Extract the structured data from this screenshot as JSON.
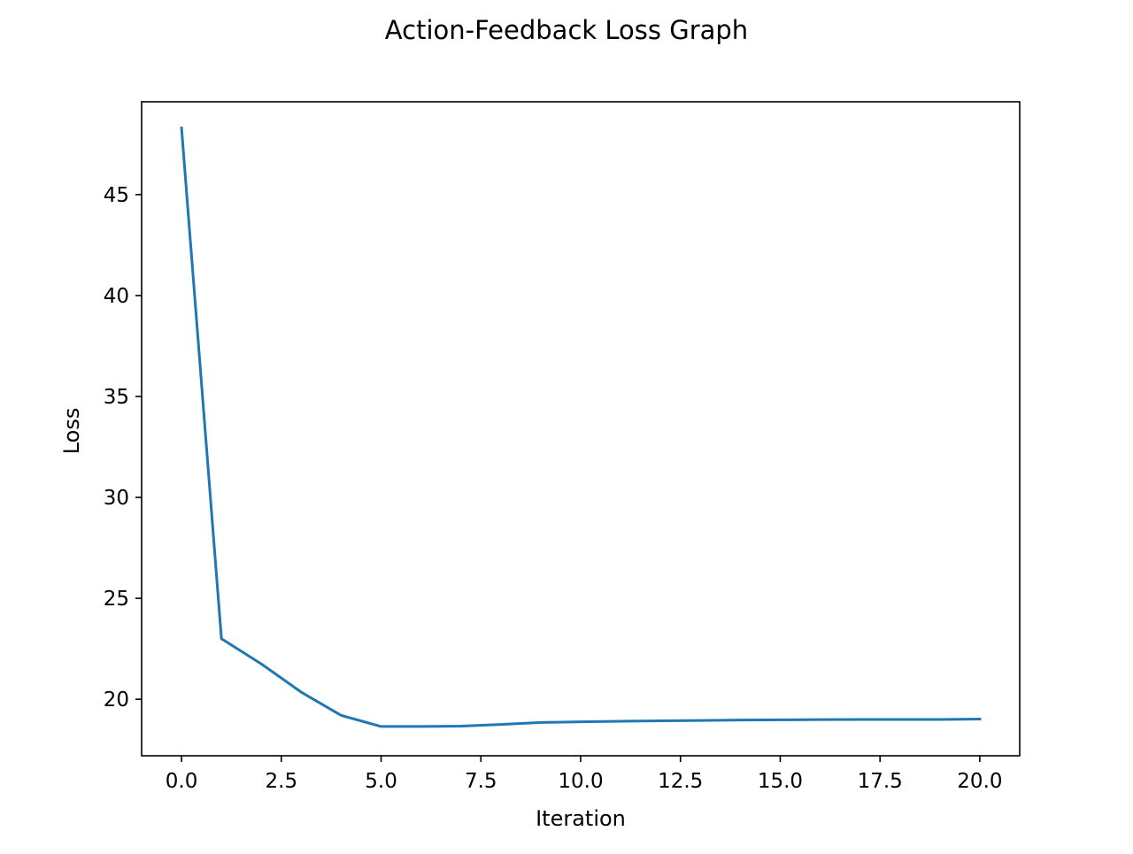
{
  "chart_data": {
    "type": "line",
    "title": "Action-Feedback Loss Graph",
    "xlabel": "Iteration",
    "ylabel": "Loss",
    "xlim": [
      -1.0,
      21.0
    ],
    "ylim": [
      17.2,
      49.6
    ],
    "xticks": [
      0.0,
      2.5,
      5.0,
      7.5,
      10.0,
      12.5,
      15.0,
      17.5,
      20.0
    ],
    "xtick_labels": [
      "0.0",
      "2.5",
      "5.0",
      "7.5",
      "10.0",
      "12.5",
      "15.0",
      "17.5",
      "20.0"
    ],
    "yticks": [
      20,
      25,
      30,
      35,
      40,
      45
    ],
    "ytick_labels": [
      "20",
      "25",
      "30",
      "35",
      "40",
      "45"
    ],
    "grid": false,
    "series": [
      {
        "color": "#1f77b4",
        "x": [
          0,
          1,
          2,
          3,
          4,
          5,
          6,
          7,
          8,
          9,
          10,
          11,
          12,
          13,
          14,
          15,
          16,
          17,
          18,
          19,
          20
        ],
        "y": [
          48.3,
          23.0,
          21.75,
          20.35,
          19.2,
          18.65,
          18.65,
          18.67,
          18.75,
          18.85,
          18.88,
          18.91,
          18.93,
          18.95,
          18.97,
          18.98,
          18.99,
          19.0,
          19.0,
          19.0,
          19.02
        ]
      }
    ]
  }
}
